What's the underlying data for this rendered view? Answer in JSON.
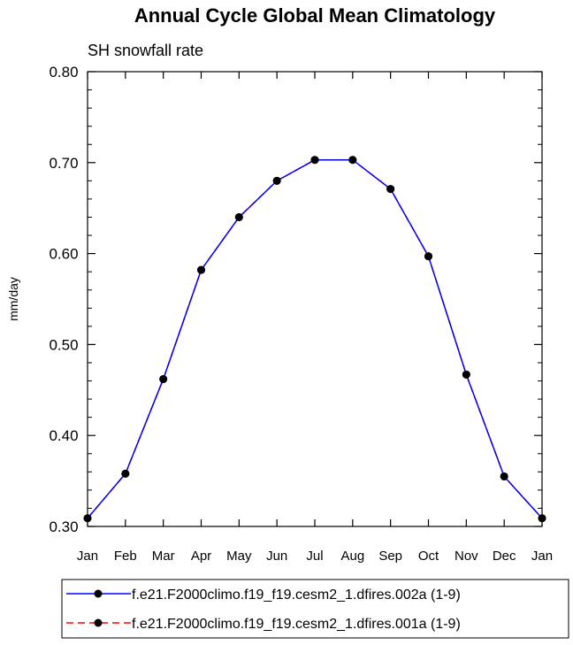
{
  "chart_data": {
    "type": "line",
    "title": "Annual Cycle Global Mean Climatology",
    "subtitle": "SH snowfall rate",
    "ylabel": "mm/day",
    "xlabel": "",
    "ylim": [
      0.3,
      0.8
    ],
    "yticks": [
      "0.30",
      "0.40",
      "0.50",
      "0.60",
      "0.70",
      "0.80"
    ],
    "ytick_values": [
      0.3,
      0.4,
      0.5,
      0.6,
      0.7,
      0.8
    ],
    "categories": [
      "Jan",
      "Feb",
      "Mar",
      "Apr",
      "May",
      "Jun",
      "Jul",
      "Aug",
      "Sep",
      "Oct",
      "Nov",
      "Dec",
      "Jan"
    ],
    "series": [
      {
        "name": "f.e21.F2000climo.f19_f19.cesm2_1.dfires.002a (1-9)",
        "color": "#0000ff",
        "style": "solid",
        "values": [
          0.309,
          0.358,
          0.462,
          0.582,
          0.64,
          0.68,
          0.703,
          0.703,
          0.671,
          0.597,
          0.467,
          0.355,
          0.309
        ]
      },
      {
        "name": "f.e21.F2000climo.f19_f19.cesm2_1.dfires.001a (1-9)",
        "color": "#ff0000",
        "style": "dashed",
        "values": [
          0.309,
          0.358,
          0.462,
          0.582,
          0.64,
          0.68,
          0.703,
          0.703,
          0.671,
          0.597,
          0.467,
          0.355,
          0.309
        ]
      }
    ]
  }
}
